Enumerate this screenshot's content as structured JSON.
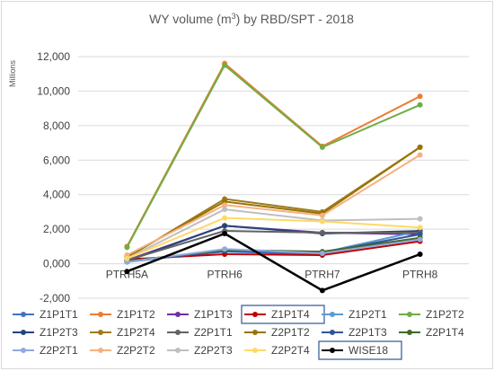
{
  "chart_data": {
    "type": "line",
    "title_main": "WY volume (m",
    "title_sup": "3",
    "title_rest": ") by RBD/SPT - 2018",
    "y_unit_label": "Millions",
    "ylim": [
      -2000,
      12000
    ],
    "y_ticks": [
      -2000,
      0,
      2000,
      4000,
      6000,
      8000,
      10000,
      12000
    ],
    "y_tick_labels": [
      "-2,000",
      "0,000",
      "2,000",
      "4,000",
      "6,000",
      "8,000",
      "10,000",
      "12,000"
    ],
    "categories": [
      "PTRH5A",
      "PTRH6",
      "PTRH7",
      "PTRH8"
    ],
    "series": [
      {
        "name": "Z1P1T1",
        "color": "#4472c4",
        "values": [
          150,
          700,
          550,
          1500
        ]
      },
      {
        "name": "Z1P1T2",
        "color": "#ed7d31",
        "values": [
          1000,
          11600,
          6800,
          9700
        ]
      },
      {
        "name": "Z1P1T3",
        "color": "#7030a0",
        "values": [
          200,
          2200,
          1800,
          1700
        ]
      },
      {
        "name": "Z1P1T4",
        "color": "#c00000",
        "values": [
          250,
          550,
          500,
          1300
        ]
      },
      {
        "name": "Z1P2T1",
        "color": "#5b9bd5",
        "values": [
          100,
          800,
          650,
          1900
        ]
      },
      {
        "name": "Z1P2T2",
        "color": "#70ad47",
        "values": [
          950,
          11500,
          6750,
          9200
        ]
      },
      {
        "name": "Z1P2T3",
        "color": "#264478",
        "values": [
          150,
          2200,
          1750,
          1900
        ]
      },
      {
        "name": "Z1P2T4",
        "color": "#9e7b1f",
        "values": [
          350,
          3750,
          3000,
          6750
        ]
      },
      {
        "name": "Z2P1T1",
        "color": "#636363",
        "values": [
          200,
          1900,
          1800,
          1800
        ]
      },
      {
        "name": "Z2P1T2",
        "color": "#997300",
        "values": [
          400,
          3600,
          2900,
          6750
        ]
      },
      {
        "name": "Z2P1T3",
        "color": "#2f5597",
        "values": [
          100,
          750,
          650,
          1700
        ]
      },
      {
        "name": "Z2P1T4",
        "color": "#43682b",
        "values": [
          150,
          800,
          700,
          1500
        ]
      },
      {
        "name": "Z2P2T1",
        "color": "#8faadc",
        "values": [
          100,
          850,
          600,
          1400
        ]
      },
      {
        "name": "Z2P2T2",
        "color": "#f4b183",
        "values": [
          500,
          3400,
          2800,
          6300
        ]
      },
      {
        "name": "Z2P2T3",
        "color": "#bfbfbf",
        "values": [
          300,
          3150,
          2500,
          2600
        ]
      },
      {
        "name": "Z2P2T4",
        "color": "#ffd966",
        "values": [
          300,
          2650,
          2450,
          2100
        ]
      },
      {
        "name": "WISE18",
        "color": "#000000",
        "values": [
          -450,
          1750,
          -1550,
          550
        ]
      }
    ],
    "highlighted_legend": [
      "Z1P1T4",
      "WISE18"
    ],
    "legend_position": "bottom",
    "grid": true
  }
}
